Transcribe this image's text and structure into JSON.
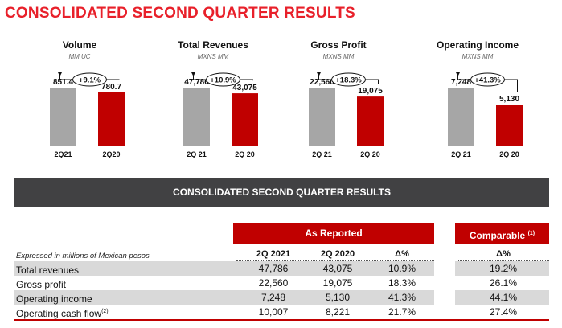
{
  "title": "CONSOLIDATED SECOND QUARTER RESULTS",
  "colors": {
    "accent": "#e8202a",
    "bar_current": "#a6a6a6",
    "bar_prior": "#c00000",
    "banner": "#414143",
    "shade": "#d9d9d9"
  },
  "kpis": [
    {
      "name": "Volume",
      "unit": "MM UC",
      "growth": "+9.1%",
      "current": {
        "label": "2Q21",
        "value": 851.4,
        "text": "851.4"
      },
      "prior": {
        "label": "2Q20",
        "value": 780.7,
        "text": "780.7"
      }
    },
    {
      "name": "Total Revenues",
      "unit": "MXNS MM",
      "growth": "+10.9%",
      "current": {
        "label": "2Q 21",
        "value": 47786,
        "text": "47,786"
      },
      "prior": {
        "label": "2Q 20",
        "value": 43075,
        "text": "43,075"
      }
    },
    {
      "name": "Gross Profit",
      "unit": "MXNS MM",
      "growth": "+18.3%",
      "current": {
        "label": "2Q 21",
        "value": 22560,
        "text": "22,560"
      },
      "prior": {
        "label": "2Q 20",
        "value": 19075,
        "text": "19,075"
      }
    },
    {
      "name": "Operating Income",
      "unit": "MXNS MM",
      "growth": "+41.3%",
      "current": {
        "label": "2Q 21",
        "value": 7248,
        "text": "7,248"
      },
      "prior": {
        "label": "2Q 20",
        "value": 5130,
        "text": "5,130"
      }
    }
  ],
  "table": {
    "banner": "CONSOLIDATED SECOND QUARTER RESULTS",
    "reported_header": "As Reported",
    "comparable_header": "Comparable",
    "comparable_note": "(1)",
    "caption": "Expressed in millions of Mexican pesos",
    "columns": [
      "2Q 2021",
      "2Q 2020",
      "Δ%",
      "Δ%"
    ],
    "rows": [
      {
        "label": "Total revenues",
        "note": "",
        "q21": "47,786",
        "q20": "43,075",
        "delta": "10.9%",
        "comparable": "19.2%"
      },
      {
        "label": "Gross profit",
        "note": "",
        "q21": "22,560",
        "q20": "19,075",
        "delta": "18.3%",
        "comparable": "26.1%"
      },
      {
        "label": "Operating income",
        "note": "",
        "q21": "7,248",
        "q20": "5,130",
        "delta": "41.3%",
        "comparable": "44.1%"
      },
      {
        "label": "Operating cash flow",
        "note": "(2)",
        "q21": "10,007",
        "q20": "8,221",
        "delta": "21.7%",
        "comparable": "27.4%"
      }
    ]
  }
}
